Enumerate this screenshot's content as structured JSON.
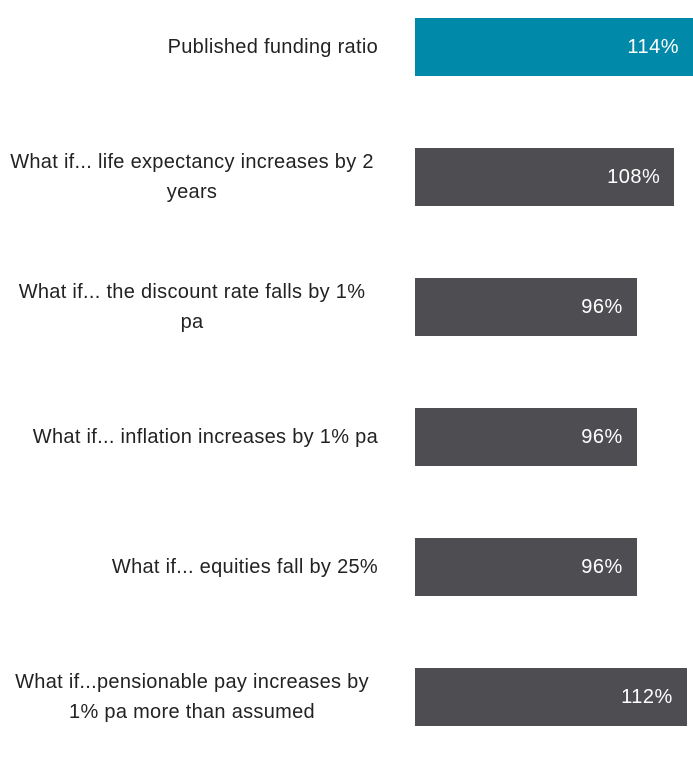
{
  "chart_data": {
    "type": "bar",
    "orientation": "horizontal",
    "categories": [
      "Published funding ratio",
      "What if... life expectancy increases by 2 years",
      "What if... the discount rate falls by 1% pa",
      "What if... inflation increases by 1% pa",
      "What if... equities fall by 25%",
      "What if...pensionable pay increases by 1% pa more than assumed"
    ],
    "values": [
      114,
      108,
      96,
      96,
      96,
      112
    ],
    "value_labels": [
      "114%",
      "108%",
      "96%",
      "96%",
      "96%",
      "112%"
    ],
    "colors": [
      "#0089a8",
      "#4d4d52",
      "#4d4d52",
      "#4d4d52",
      "#4d4d52",
      "#4d4d52"
    ],
    "xlim": [
      25,
      114
    ]
  }
}
